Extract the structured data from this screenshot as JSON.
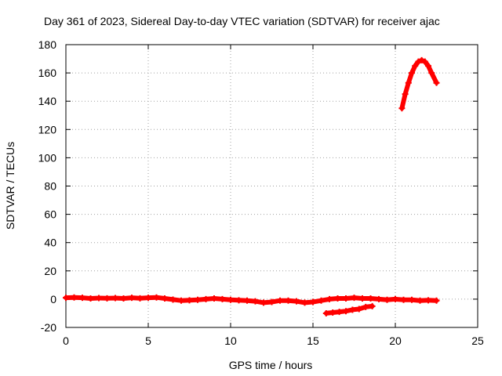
{
  "chart_data": {
    "type": "scatter",
    "title": "Day 361 of 2023, Sidereal Day-to-day VTEC variation (SDTVAR) for receiver ajac",
    "xlabel": "GPS time / hours",
    "ylabel": "SDTVAR / TECUs",
    "xlim": [
      0,
      25
    ],
    "ylim": [
      -20,
      180
    ],
    "xticks": [
      0,
      5,
      10,
      15,
      20,
      25
    ],
    "yticks": [
      -20,
      0,
      20,
      40,
      60,
      80,
      100,
      120,
      140,
      160,
      180
    ],
    "grid": true,
    "series": [
      {
        "name": "main-track",
        "marker": "plus",
        "color": "#ff0000",
        "points": [
          [
            0.0,
            1.0
          ],
          [
            0.5,
            1.2
          ],
          [
            1.0,
            1.0
          ],
          [
            1.5,
            0.5
          ],
          [
            2.0,
            0.8
          ],
          [
            2.5,
            0.6
          ],
          [
            3.0,
            0.8
          ],
          [
            3.5,
            0.5
          ],
          [
            4.0,
            1.0
          ],
          [
            4.5,
            0.6
          ],
          [
            5.0,
            1.0
          ],
          [
            5.5,
            1.2
          ],
          [
            6.0,
            0.5
          ],
          [
            6.5,
            -0.3
          ],
          [
            7.0,
            -1.0
          ],
          [
            7.5,
            -0.8
          ],
          [
            8.0,
            -0.5
          ],
          [
            8.5,
            0.0
          ],
          [
            9.0,
            0.5
          ],
          [
            9.5,
            0.0
          ],
          [
            10.0,
            -0.5
          ],
          [
            10.5,
            -0.8
          ],
          [
            11.0,
            -1.0
          ],
          [
            11.5,
            -1.5
          ],
          [
            12.0,
            -2.5
          ],
          [
            12.5,
            -2.0
          ],
          [
            13.0,
            -1.0
          ],
          [
            13.5,
            -1.0
          ],
          [
            14.0,
            -1.5
          ],
          [
            14.5,
            -2.5
          ],
          [
            15.0,
            -2.0
          ],
          [
            15.5,
            -1.0
          ],
          [
            16.0,
            0.0
          ],
          [
            16.5,
            0.5
          ],
          [
            17.0,
            0.5
          ],
          [
            17.5,
            1.0
          ],
          [
            18.0,
            0.5
          ],
          [
            18.5,
            0.5
          ],
          [
            19.0,
            0.0
          ],
          [
            19.5,
            -0.5
          ],
          [
            20.0,
            0.0
          ],
          [
            20.5,
            -0.5
          ],
          [
            21.0,
            -0.5
          ],
          [
            21.5,
            -1.0
          ],
          [
            22.0,
            -0.8
          ],
          [
            22.5,
            -1.0
          ]
        ]
      },
      {
        "name": "offset-track",
        "marker": "plus",
        "color": "#ff0000",
        "points": [
          [
            15.8,
            -10.0
          ],
          [
            16.2,
            -9.5
          ],
          [
            16.6,
            -9.0
          ],
          [
            17.0,
            -8.5
          ],
          [
            17.4,
            -7.5
          ],
          [
            17.8,
            -7.0
          ],
          [
            18.2,
            -5.5
          ],
          [
            18.6,
            -5.0
          ]
        ]
      },
      {
        "name": "high-arc",
        "marker": "plus",
        "color": "#ff0000",
        "points": [
          [
            20.4,
            135.0
          ],
          [
            20.6,
            145.0
          ],
          [
            20.8,
            153.0
          ],
          [
            21.0,
            160.0
          ],
          [
            21.2,
            165.0
          ],
          [
            21.4,
            168.0
          ],
          [
            21.6,
            169.0
          ],
          [
            21.8,
            168.0
          ],
          [
            22.0,
            165.0
          ],
          [
            22.2,
            160.0
          ],
          [
            22.5,
            153.0
          ]
        ]
      }
    ]
  }
}
